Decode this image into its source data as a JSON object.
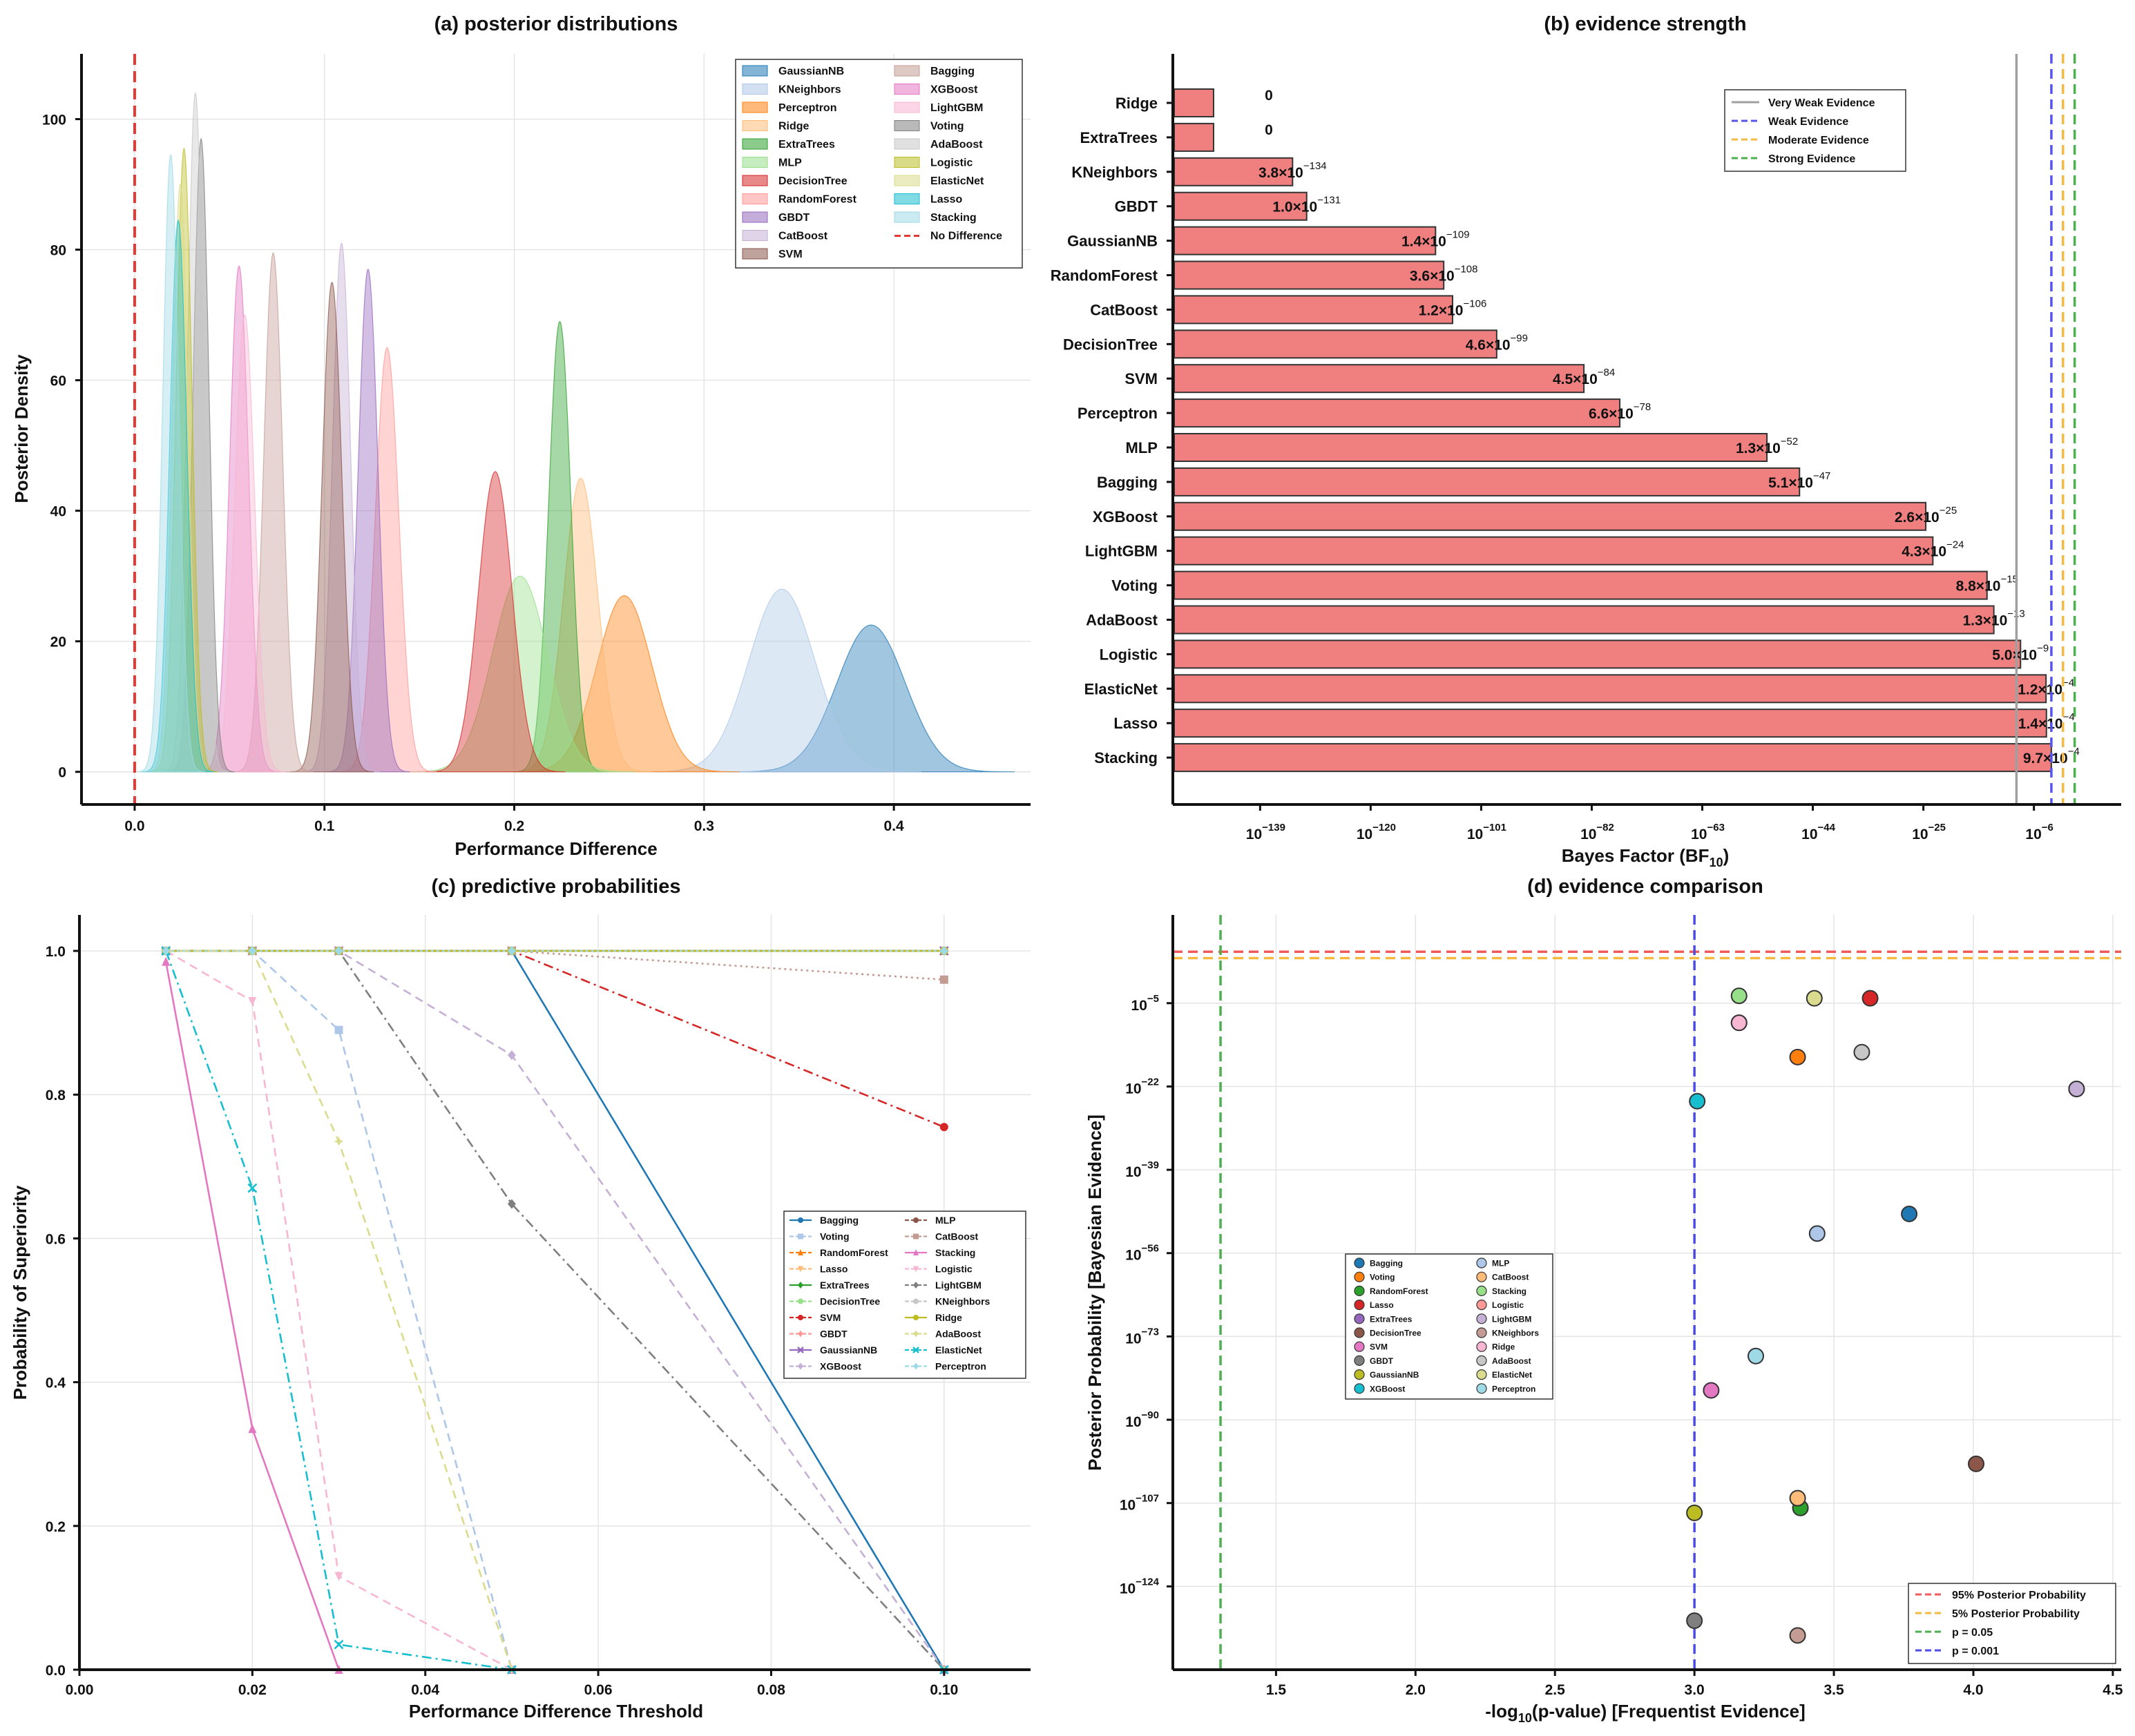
{
  "chart_data": [
    {
      "panel": "a",
      "type": "area",
      "title": "(a) posterior distributions",
      "xlabel": "Performance Difference",
      "ylabel": "Posterior Density",
      "xlim": [
        -0.028,
        0.472
      ],
      "ylim": [
        -5,
        110
      ],
      "xticks": [
        0.0,
        0.1,
        0.2,
        0.3,
        0.4
      ],
      "xtick_labels": [
        "0.0",
        "0.1",
        "0.2",
        "0.3",
        "0.4"
      ],
      "yticks": [
        0,
        20,
        40,
        60,
        80,
        100
      ],
      "ytick_labels": [
        "0",
        "20",
        "40",
        "60",
        "80",
        "100"
      ],
      "grid": true,
      "legend_position": "top-right",
      "reference_line": {
        "x": 0.0,
        "label": "No Difference",
        "color": "#e53935"
      },
      "series": [
        {
          "name": "GaussianNB",
          "mean": 0.388,
          "sd": 0.018,
          "peak": 22.5,
          "color": "#1f77b4"
        },
        {
          "name": "KNeighbors",
          "mean": 0.341,
          "sd": 0.0175,
          "peak": 28,
          "color": "#aec7e8"
        },
        {
          "name": "Perceptron",
          "mean": 0.258,
          "sd": 0.0145,
          "peak": 27,
          "color": "#ff7f0e"
        },
        {
          "name": "Ridge",
          "mean": 0.235,
          "sd": 0.009,
          "peak": 45,
          "color": "#ffbb78"
        },
        {
          "name": "ExtraTrees",
          "mean": 0.224,
          "sd": 0.0058,
          "peak": 69,
          "color": "#2ca02c"
        },
        {
          "name": "MLP",
          "mean": 0.203,
          "sd": 0.0145,
          "peak": 30,
          "color": "#98df8a"
        },
        {
          "name": "DecisionTree",
          "mean": 0.19,
          "sd": 0.0088,
          "peak": 46,
          "color": "#d62728"
        },
        {
          "name": "RandomForest",
          "mean": 0.133,
          "sd": 0.0062,
          "peak": 65,
          "color": "#ff9896"
        },
        {
          "name": "GBDT",
          "mean": 0.123,
          "sd": 0.0052,
          "peak": 77,
          "color": "#9467bd"
        },
        {
          "name": "CatBoost",
          "mean": 0.109,
          "sd": 0.0048,
          "peak": 81,
          "color": "#c5b0d5"
        },
        {
          "name": "SVM",
          "mean": 0.104,
          "sd": 0.0052,
          "peak": 75,
          "color": "#8c564b"
        },
        {
          "name": "Bagging",
          "mean": 0.073,
          "sd": 0.005,
          "peak": 79.5,
          "color": "#c49c94"
        },
        {
          "name": "XGBoost",
          "mean": 0.055,
          "sd": 0.005,
          "peak": 77.5,
          "color": "#e377c2"
        },
        {
          "name": "LightGBM",
          "mean": 0.058,
          "sd": 0.0052,
          "peak": 70,
          "color": "#f7b6d2"
        },
        {
          "name": "Voting",
          "mean": 0.035,
          "sd": 0.0042,
          "peak": 97,
          "color": "#7f7f7f"
        },
        {
          "name": "AdaBoost",
          "mean": 0.032,
          "sd": 0.0042,
          "peak": 104,
          "color": "#c7c7c7"
        },
        {
          "name": "Logistic",
          "mean": 0.026,
          "sd": 0.0042,
          "peak": 95.5,
          "color": "#bcbd22"
        },
        {
          "name": "ElasticNet",
          "mean": 0.024,
          "sd": 0.0042,
          "peak": 90,
          "color": "#dbdb8d"
        },
        {
          "name": "Lasso",
          "mean": 0.023,
          "sd": 0.0045,
          "peak": 84.5,
          "color": "#17becf"
        },
        {
          "name": "Stacking",
          "mean": 0.019,
          "sd": 0.0042,
          "peak": 94.5,
          "color": "#9edae5"
        }
      ],
      "legend": [
        "GaussianNB",
        "KNeighbors",
        "Perceptron",
        "Ridge",
        "ExtraTrees",
        "MLP",
        "DecisionTree",
        "RandomForest",
        "GBDT",
        "CatBoost",
        "SVM",
        "Bagging",
        "XGBoost",
        "LightGBM",
        "Voting",
        "AdaBoost",
        "Logistic",
        "ElasticNet",
        "Lasso",
        "Stacking",
        "No Difference"
      ]
    },
    {
      "panel": "b",
      "type": "bar",
      "orientation": "horizontal",
      "title": "(b) evidence strength",
      "xlabel": "Bayes Factor (BF",
      "xlabel_sub": "10",
      "xlabel_close": ")",
      "xscale": "log10",
      "xlim_log10": [
        -154,
        9
      ],
      "xtick_base": "10",
      "xticks_log10": [
        -139,
        -120,
        -101,
        -82,
        -63,
        -44,
        -25,
        -6
      ],
      "xtick_exponents": [
        "−139",
        "−120",
        "−101",
        "−82",
        "−63",
        "−44",
        "−25",
        "−6"
      ],
      "bar_color": "#f08080",
      "zero_bar_log10": -147,
      "categories": [
        "Ridge",
        "ExtraTrees",
        "KNeighbors",
        "GBDT",
        "GaussianNB",
        "RandomForest",
        "CatBoost",
        "DecisionTree",
        "SVM",
        "Perceptron",
        "MLP",
        "Bagging",
        "XGBoost",
        "LightGBM",
        "Voting",
        "AdaBoost",
        "Logistic",
        "ElasticNet",
        "Lasso",
        "Stacking"
      ],
      "values_log10": [
        null,
        null,
        -133.42,
        -131.0,
        -108.85,
        -107.44,
        -105.92,
        -98.34,
        -83.35,
        -77.18,
        -51.89,
        -46.29,
        -24.59,
        -23.37,
        -14.06,
        -12.89,
        -8.3,
        -3.92,
        -3.85,
        -3.01
      ],
      "value_labels": [
        {
          "mant": "0",
          "exp": ""
        },
        {
          "mant": "0",
          "exp": ""
        },
        {
          "mant": "3.8×10",
          "exp": "−134"
        },
        {
          "mant": "1.0×10",
          "exp": "−131"
        },
        {
          "mant": "1.4×10",
          "exp": "−109"
        },
        {
          "mant": "3.6×10",
          "exp": "−108"
        },
        {
          "mant": "1.2×10",
          "exp": "−106"
        },
        {
          "mant": "4.6×10",
          "exp": "−99"
        },
        {
          "mant": "4.5×10",
          "exp": "−84"
        },
        {
          "mant": "6.6×10",
          "exp": "−78"
        },
        {
          "mant": "1.3×10",
          "exp": "−52"
        },
        {
          "mant": "5.1×10",
          "exp": "−47"
        },
        {
          "mant": "2.6×10",
          "exp": "−25"
        },
        {
          "mant": "4.3×10",
          "exp": "−24"
        },
        {
          "mant": "8.8×10",
          "exp": "−15"
        },
        {
          "mant": "1.3×10",
          "exp": "−13"
        },
        {
          "mant": "5.0×10",
          "exp": "−9"
        },
        {
          "mant": "1.2×10",
          "exp": "−4"
        },
        {
          "mant": "1.4×10",
          "exp": "−4"
        },
        {
          "mant": "9.7×10",
          "exp": "−4"
        }
      ],
      "thresholds": [
        {
          "label": "Very Weak Evidence",
          "log10": -9,
          "color": "#a0a0a0",
          "dash": "solid"
        },
        {
          "label": "Weak Evidence",
          "log10": -3,
          "color": "#5555ee",
          "dash": "dashed"
        },
        {
          "label": "Moderate Evidence",
          "log10": -1,
          "color": "#f5b942",
          "dash": "dashed"
        },
        {
          "label": "Strong Evidence",
          "log10": 1,
          "color": "#4caf50",
          "dash": "dashed"
        }
      ],
      "legend_position": "top-right"
    },
    {
      "panel": "c",
      "type": "line",
      "title": "(c) predictive probabilities",
      "xlabel": "Performance Difference Threshold",
      "ylabel": "Probability of Superiority",
      "xlim": [
        0.0,
        0.11
      ],
      "ylim": [
        0.0,
        1.05
      ],
      "xticks": [
        0.0,
        0.02,
        0.04,
        0.06,
        0.08,
        0.1
      ],
      "xtick_labels": [
        "0.00",
        "0.02",
        "0.04",
        "0.06",
        "0.08",
        "0.10"
      ],
      "yticks": [
        0.0,
        0.2,
        0.4,
        0.6,
        0.8,
        1.0
      ],
      "ytick_labels": [
        "0.0",
        "0.2",
        "0.4",
        "0.6",
        "0.8",
        "1.0"
      ],
      "grid": true,
      "legend_position": "center-right",
      "x": [
        0.01,
        0.02,
        0.03,
        0.05,
        0.1
      ],
      "series": [
        {
          "name": "Bagging",
          "values": [
            1,
            1,
            1,
            1,
            0
          ],
          "color": "#1f77b4",
          "dash": "",
          "marker": "circle"
        },
        {
          "name": "Voting",
          "values": [
            1,
            1,
            0.89,
            0,
            0
          ],
          "color": "#aec7e8",
          "dash": "12 8",
          "marker": "square"
        },
        {
          "name": "RandomForest",
          "values": [
            1,
            1,
            1,
            1,
            1
          ],
          "color": "#ff7f0e",
          "dash": "14 6 3 6",
          "marker": "triangle"
        },
        {
          "name": "Lasso",
          "values": [
            1,
            1,
            1,
            1,
            1
          ],
          "color": "#ffbb78",
          "dash": "3 5",
          "marker": "tri-down"
        },
        {
          "name": "ExtraTrees",
          "values": [
            1,
            1,
            1,
            1,
            1
          ],
          "color": "#2ca02c",
          "dash": "",
          "marker": "diamond"
        },
        {
          "name": "DecisionTree",
          "values": [
            1,
            1,
            1,
            1,
            1
          ],
          "color": "#98df8a",
          "dash": "12 8",
          "marker": "hex"
        },
        {
          "name": "SVM",
          "values": [
            1,
            1,
            1,
            1,
            0.755
          ],
          "color": "#d62728",
          "dash": "14 6 3 6",
          "marker": "pentagon"
        },
        {
          "name": "GBDT",
          "values": [
            1,
            1,
            1,
            1,
            1
          ],
          "color": "#ff9896",
          "dash": "3 5",
          "marker": "star"
        },
        {
          "name": "GaussianNB",
          "values": [
            1,
            1,
            1,
            1,
            1
          ],
          "color": "#9467bd",
          "dash": "",
          "marker": "x"
        },
        {
          "name": "XGBoost",
          "values": [
            1,
            1,
            1,
            0.855,
            0
          ],
          "color": "#c5b0d5",
          "dash": "12 8",
          "marker": "diamond"
        },
        {
          "name": "MLP",
          "values": [
            1,
            1,
            1,
            1,
            1
          ],
          "color": "#8c564b",
          "dash": "14 6 3 6",
          "marker": "circle"
        },
        {
          "name": "CatBoost",
          "values": [
            1,
            1,
            1,
            1,
            0.96
          ],
          "color": "#c49c94",
          "dash": "3 5",
          "marker": "square"
        },
        {
          "name": "Stacking",
          "values": [
            0.985,
            0.335,
            0,
            0,
            0
          ],
          "color": "#e377c2",
          "dash": "",
          "marker": "triangle"
        },
        {
          "name": "Logistic",
          "values": [
            1,
            0.93,
            0.13,
            0,
            0
          ],
          "color": "#f7b6d2",
          "dash": "12 8",
          "marker": "tri-down"
        },
        {
          "name": "LightGBM",
          "values": [
            1,
            1,
            1,
            0.648,
            0
          ],
          "color": "#7f7f7f",
          "dash": "14 6 3 6",
          "marker": "diamond"
        },
        {
          "name": "KNeighbors",
          "values": [
            1,
            1,
            1,
            1,
            1
          ],
          "color": "#c7c7c7",
          "dash": "3 5",
          "marker": "hex"
        },
        {
          "name": "Ridge",
          "values": [
            1,
            1,
            1,
            1,
            1
          ],
          "color": "#bcbd22",
          "dash": "",
          "marker": "pentagon"
        },
        {
          "name": "AdaBoost",
          "values": [
            1,
            1,
            0.735,
            0,
            0
          ],
          "color": "#dbdb8d",
          "dash": "12 8",
          "marker": "star"
        },
        {
          "name": "ElasticNet",
          "values": [
            1,
            0.67,
            0.035,
            0,
            0
          ],
          "color": "#17becf",
          "dash": "14 6 3 6",
          "marker": "x"
        },
        {
          "name": "Perceptron",
          "values": [
            1,
            1,
            1,
            1,
            1
          ],
          "color": "#9edae5",
          "dash": "3 5",
          "marker": "diamond"
        }
      ]
    },
    {
      "panel": "d",
      "type": "scatter",
      "title": "(d) evidence comparison",
      "xlabel": "-log",
      "xlabel_sub": "10",
      "xlabel_tail": "(p-value) [Frequentist Evidence]",
      "ylabel": "Posterior Probability [Bayesian Evidence]",
      "xlim": [
        1.13,
        4.53
      ],
      "yscale": "log10",
      "ylim_log10": [
        -141,
        13
      ],
      "xticks": [
        1.5,
        2.0,
        2.5,
        3.0,
        3.5,
        4.0,
        4.5
      ],
      "xtick_labels": [
        "1.5",
        "2.0",
        "2.5",
        "3.0",
        "3.5",
        "4.0",
        "4.5"
      ],
      "ytick_base": "10",
      "yticks_log10": [
        -5,
        -22,
        -39,
        -56,
        -73,
        -90,
        -107,
        -124
      ],
      "ytick_exponents": [
        "−5",
        "−22",
        "−39",
        "−56",
        "−73",
        "−90",
        "−107",
        "−124"
      ],
      "grid": true,
      "legend_position": "center-left",
      "reference_lines": [
        {
          "label": "95% Posterior Probability",
          "orientation": "horizontal",
          "log10": 5.5,
          "color": "#ef5b5b"
        },
        {
          "label": "5% Posterior Probability",
          "orientation": "horizontal",
          "log10": 4.2,
          "color": "#f5b942"
        },
        {
          "label": "p = 0.05",
          "orientation": "vertical",
          "x": 1.301,
          "color": "#4caf50"
        },
        {
          "label": "p = 0.001",
          "orientation": "vertical",
          "x": 3.0,
          "color": "#4b4bea"
        }
      ],
      "points": [
        {
          "name": "Bagging",
          "x": 3.77,
          "log10": -48,
          "color": "#1f77b4"
        },
        {
          "name": "Voting",
          "x": 3.37,
          "log10": -16,
          "color": "#ff7f0e"
        },
        {
          "name": "RandomForest",
          "x": 3.38,
          "log10": -108,
          "color": "#2ca02c"
        },
        {
          "name": "Lasso",
          "x": 3.63,
          "log10": -4,
          "color": "#d62728"
        },
        {
          "name": "ExtraTrees",
          "x": 4.37,
          "log10": -22.5,
          "color": "#9467bd"
        },
        {
          "name": "DecisionTree",
          "x": 4.01,
          "log10": -99,
          "color": "#8c564b"
        },
        {
          "name": "SVM",
          "x": 3.06,
          "log10": -84,
          "color": "#e377c2"
        },
        {
          "name": "GBDT",
          "x": 3.0,
          "log10": -131,
          "color": "#7f7f7f"
        },
        {
          "name": "GaussianNB",
          "x": 3.0,
          "log10": -109,
          "color": "#bcbd22"
        },
        {
          "name": "XGBoost",
          "x": 3.01,
          "log10": -25,
          "color": "#17becf"
        },
        {
          "name": "MLP",
          "x": 3.44,
          "log10": -52,
          "color": "#aec7e8"
        },
        {
          "name": "CatBoost",
          "x": 3.37,
          "log10": -106,
          "color": "#ffbb78"
        },
        {
          "name": "Stacking",
          "x": 3.16,
          "log10": -3.5,
          "color": "#98df8a"
        },
        {
          "name": "Logistic",
          "x": 3.16,
          "log10": -9,
          "color": "#ff9896"
        },
        {
          "name": "LightGBM",
          "x": 4.37,
          "log10": -22.5,
          "color": "#c5b0d5"
        },
        {
          "name": "KNeighbors",
          "x": 3.37,
          "log10": -134,
          "color": "#c49c94"
        },
        {
          "name": "Ridge",
          "x": 3.16,
          "log10": -9,
          "color": "#f7b6d2"
        },
        {
          "name": "AdaBoost",
          "x": 3.6,
          "log10": -15,
          "color": "#c7c7c7"
        },
        {
          "name": "ElasticNet",
          "x": 3.43,
          "log10": -4,
          "color": "#dbdb8d"
        },
        {
          "name": "Perceptron",
          "x": 3.22,
          "log10": -77,
          "color": "#9edae5"
        }
      ]
    }
  ]
}
